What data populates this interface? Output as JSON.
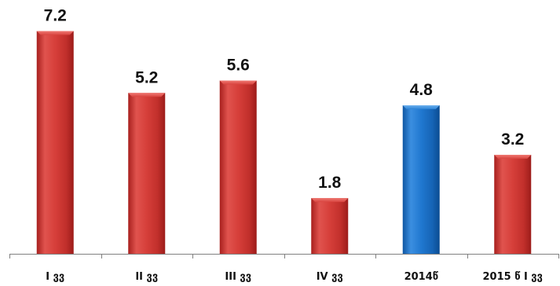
{
  "chart_data": {
    "type": "bar",
    "categories": [
      "I ვვ",
      "II ვვ",
      "III ვვ",
      "IV ვვ",
      "2014წ",
      "2015 წ I ვვ"
    ],
    "values": [
      7.2,
      5.2,
      5.6,
      1.8,
      4.8,
      3.2
    ],
    "data_labels": [
      "7.2",
      "5.2",
      "5.6",
      "1.8",
      "4.8",
      "3.2"
    ],
    "ylim": [
      0,
      8.0
    ],
    "grid": false,
    "legend": "none",
    "colors": {
      "default_bar": "#c9302c",
      "highlight_bar": "#1a73c7",
      "axis": "#808080"
    },
    "highlight_index": 4
  }
}
